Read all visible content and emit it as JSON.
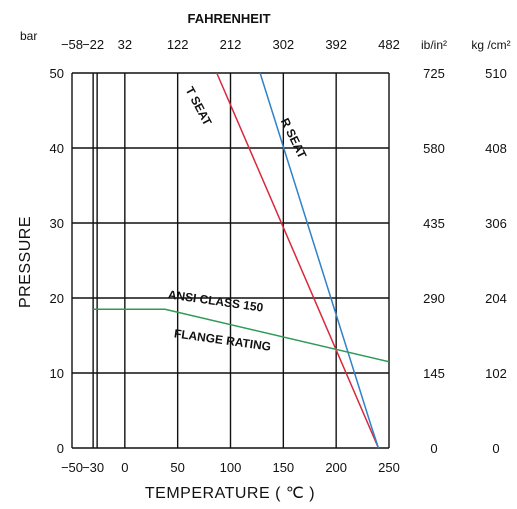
{
  "chart_data": {
    "type": "line",
    "top_axis_title": "FAHRENHEIT",
    "top_axis_ticks": [
      "−58",
      "−22",
      "32",
      "122",
      "212",
      "302",
      "392",
      "482"
    ],
    "top_left_unit": "bar",
    "xlabel": "TEMPERATURE ( ℃ )",
    "ylabel": "PRESSURE",
    "xlim": [
      -50,
      250
    ],
    "ylim": [
      0,
      50
    ],
    "x_ticks": [
      -50,
      -30,
      0,
      50,
      100,
      150,
      200,
      250
    ],
    "x_tick_labels": [
      "−50",
      "−30",
      "0",
      "50",
      "100",
      "150",
      "200",
      "250"
    ],
    "y_ticks": [
      0,
      10,
      20,
      30,
      40,
      50
    ],
    "y_tick_labels": [
      "0",
      "10",
      "20",
      "30",
      "40",
      "50"
    ],
    "right_axes": [
      {
        "unit": "ib/in²",
        "labels": [
          "0",
          "145",
          "290",
          "435",
          "580",
          "725"
        ]
      },
      {
        "unit": "kg /cm²",
        "labels": [
          "0",
          "102",
          "204",
          "306",
          "408",
          "510"
        ]
      }
    ],
    "grid": true,
    "series": [
      {
        "name": "T SEAT",
        "color": "#d8283c",
        "x": [
          87,
          240
        ],
        "y": [
          50,
          0
        ]
      },
      {
        "name": "R SEAT",
        "color": "#2f82c8",
        "x": [
          128,
          233,
          240
        ],
        "y": [
          50,
          3,
          0
        ]
      },
      {
        "name": "ANSI CLASS 150 FLANGE RATING",
        "color": "#2f9a56",
        "x": [
          -30,
          38,
          250
        ],
        "y": [
          18.5,
          18.5,
          11.5
        ]
      }
    ],
    "annotations": {
      "t_seat": "T SEAT",
      "r_seat": "R SEAT",
      "ansi_line1": "ANSI CLASS 150",
      "ansi_line2": "FLANGE RATING"
    }
  }
}
